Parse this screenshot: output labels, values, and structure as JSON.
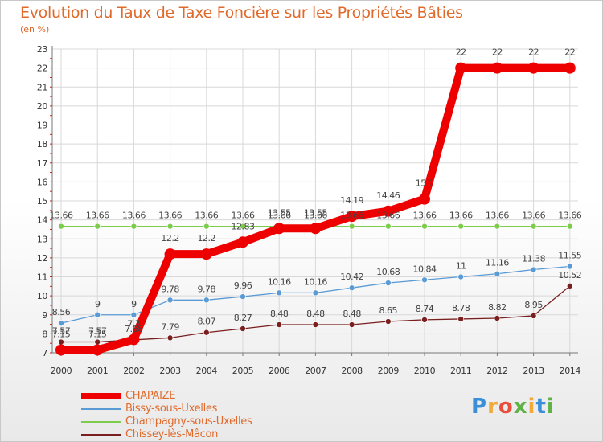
{
  "title": "Evolution du Taux de Taxe Foncière sur les Propriétés Bâties",
  "subtitle": "(en %)",
  "brand": {
    "letters": [
      "P",
      "r",
      "o",
      "x",
      "i",
      "t",
      "i"
    ],
    "colors": [
      "#3b8fd8",
      "#f2a93b",
      "#e84e3a",
      "#5fb246",
      "#f2a93b",
      "#3b8fd8",
      "#5fb246"
    ]
  },
  "chart_data": {
    "type": "line",
    "title": "Evolution du Taux de Taxe Foncière sur les Propriétés Bâties",
    "ylabel": "(en %)",
    "xlabel": "",
    "ylim": [
      7,
      23
    ],
    "yticks": [
      7,
      8,
      9,
      10,
      11,
      12,
      13,
      14,
      15,
      16,
      17,
      18,
      19,
      20,
      21,
      22,
      23
    ],
    "grid": true,
    "legend_position": "bottom-left",
    "x": [
      "2000",
      "2001",
      "2002",
      "2003",
      "2004",
      "2005",
      "2006",
      "2007",
      "2008",
      "2009",
      "2010",
      "2011",
      "2012",
      "2013",
      "2014"
    ],
    "series": [
      {
        "name": "CHAPAIZE",
        "color": "#ee0000",
        "thick": true,
        "values": [
          7.15,
          7.15,
          7.7,
          12.2,
          12.2,
          12.83,
          13.55,
          13.55,
          14.19,
          14.46,
          15.1,
          22,
          22,
          22,
          22
        ],
        "labels": [
          "7.15",
          "7.15",
          "7.7",
          "12.2",
          "12.2",
          "12.83",
          "13.55",
          "13.55",
          "14.19",
          "14.46",
          "15.1",
          "22",
          "22",
          "22",
          "22"
        ]
      },
      {
        "name": "Bissy-sous-Uxelles",
        "color": "#5b9bd5",
        "thick": false,
        "values": [
          8.56,
          9,
          9,
          9.78,
          9.78,
          9.96,
          10.16,
          10.16,
          10.42,
          10.68,
          10.84,
          11,
          11.16,
          11.38,
          11.55
        ],
        "labels": [
          "8.56",
          "9",
          "9",
          "9.78",
          "9.78",
          "9.96",
          "10.16",
          "10.16",
          "10.42",
          "10.68",
          "10.84",
          "11",
          "11.16",
          "11.38",
          "11.55"
        ]
      },
      {
        "name": "Champagny-sous-Uxelles",
        "color": "#7dcc4e",
        "thick": false,
        "values": [
          13.66,
          13.66,
          13.66,
          13.66,
          13.66,
          13.66,
          13.66,
          13.66,
          13.66,
          13.66,
          13.66,
          13.66,
          13.66,
          13.66,
          13.66
        ],
        "labels": [
          "13.66",
          "13.66",
          "13.66",
          "13.66",
          "13.66",
          "13.66",
          "13.66",
          "13.66",
          "13.66",
          "13.66",
          "13.66",
          "13.66",
          "13.66",
          "13.66",
          "13.66"
        ]
      },
      {
        "name": "Chissey-lès-Mâcon",
        "color": "#7a1f1f",
        "thick": false,
        "values": [
          7.57,
          7.57,
          7.68,
          7.79,
          8.07,
          8.27,
          8.48,
          8.48,
          8.48,
          8.65,
          8.74,
          8.78,
          8.82,
          8.95,
          10.52
        ],
        "labels": [
          "7.57",
          "7.57",
          "7.68",
          "7.79",
          "8.07",
          "8.27",
          "8.48",
          "8.48",
          "8.48",
          "8.65",
          "8.74",
          "8.78",
          "8.82",
          "8.95",
          "10.52"
        ]
      }
    ]
  }
}
